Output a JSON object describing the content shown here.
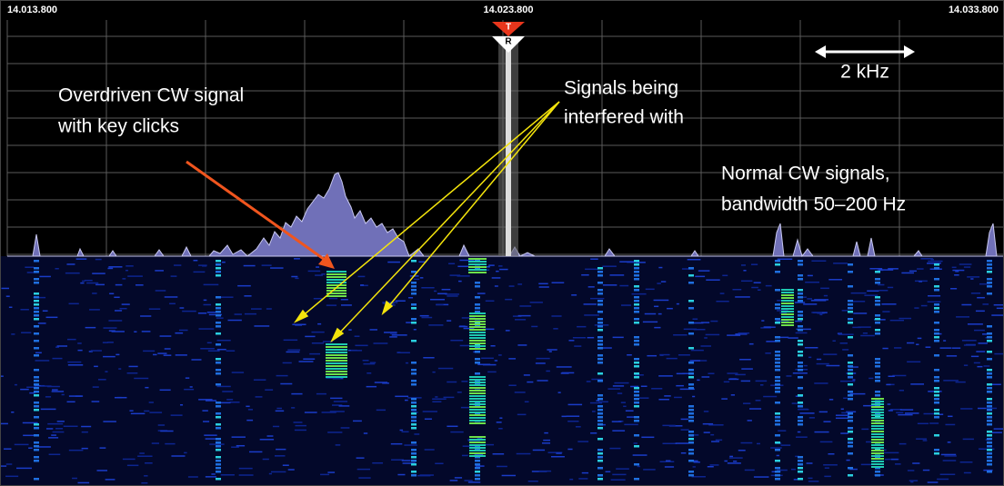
{
  "header": {
    "frequencies": [
      "14.013.800",
      "14.023.800",
      "14.033.800"
    ]
  },
  "markers": {
    "tx": "T",
    "rx": "R"
  },
  "annotations": {
    "overdriven": [
      "Overdriven CW signal",
      "with key clicks"
    ],
    "interfered": [
      "Signals being",
      "interfered with"
    ],
    "scale": "2 kHz",
    "normal": [
      "Normal CW signals,",
      "bandwidth 50–200 Hz"
    ]
  }
}
